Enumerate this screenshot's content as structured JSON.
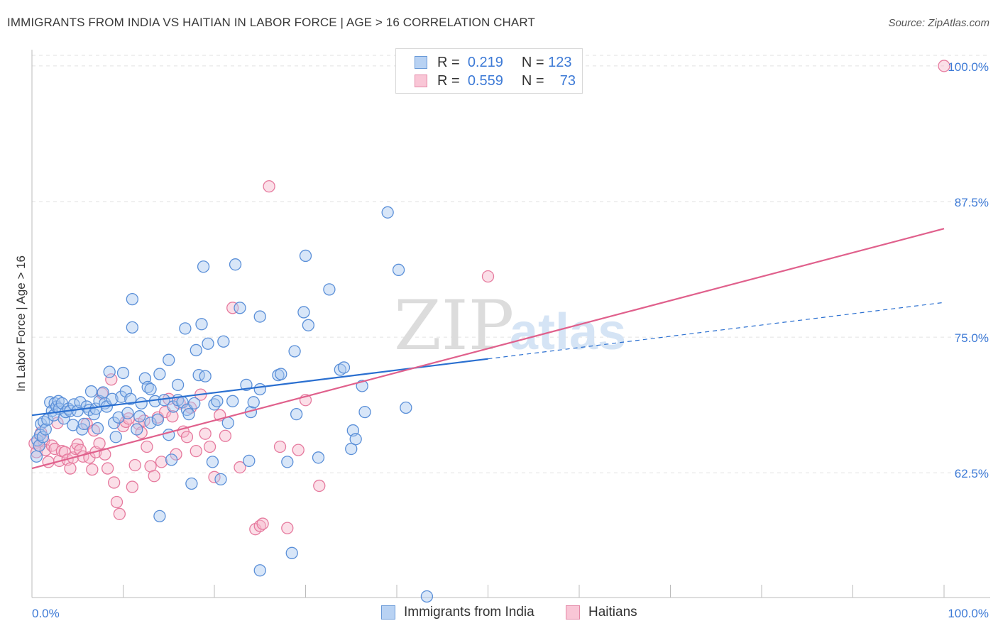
{
  "title": "IMMIGRANTS FROM INDIA VS HAITIAN IN LABOR FORCE | AGE > 16 CORRELATION CHART",
  "source": "Source: ZipAtlas.com",
  "watermark": {
    "zip": "ZIP",
    "atlas": "atlas"
  },
  "colors": {
    "blue_fill": "#a8c8f0",
    "blue_stroke": "#5a8fd8",
    "blue_line": "#2a6fd0",
    "pink_fill": "#f6b8cc",
    "pink_stroke": "#e67a9e",
    "pink_line": "#e0608c",
    "axis_label": "#3d7ad6",
    "grid": "#e2e2e2"
  },
  "legend_top": {
    "rows": [
      {
        "r_label": "R =",
        "r_value": "0.219",
        "n_label": "N =",
        "n_value": "123"
      },
      {
        "r_label": "R =",
        "r_value": "0.559",
        "n_label": "N =",
        "n_value": "73"
      }
    ]
  },
  "bottom_legend": [
    "Immigrants from India",
    "Haitians"
  ],
  "chart_data": {
    "type": "scatter",
    "xlabel": "",
    "ylabel": "In Labor Force | Age > 16",
    "xlim": [
      0,
      100
    ],
    "ylim": [
      51,
      101.5
    ],
    "x_tick_labels": [
      "0.0%",
      "100.0%"
    ],
    "y_ticks": [
      62.5,
      75.0,
      87.5,
      100.0
    ],
    "y_tick_labels": [
      "62.5%",
      "75.0%",
      "87.5%",
      "100.0%"
    ],
    "grid": true,
    "legend": "top-center",
    "series": [
      {
        "name": "Immigrants from India",
        "r": 0.219,
        "n": 123,
        "trend": {
          "x0": 0,
          "y0": 67.8,
          "x1": 50,
          "y1": 73.0,
          "dash_x1": 100,
          "dash_y1": 78.2
        },
        "points": [
          [
            0.5,
            64
          ],
          [
            0.6,
            65.5
          ],
          [
            0.8,
            65
          ],
          [
            0.9,
            66
          ],
          [
            1,
            67
          ],
          [
            1.2,
            65.8
          ],
          [
            1.3,
            67.2
          ],
          [
            1.5,
            66.5
          ],
          [
            1.7,
            67.4
          ],
          [
            2,
            69
          ],
          [
            2.2,
            68.2
          ],
          [
            2.4,
            67.8
          ],
          [
            2.5,
            68.9
          ],
          [
            2.7,
            68.6
          ],
          [
            2.9,
            69.1
          ],
          [
            3,
            68.4
          ],
          [
            3.3,
            68.9
          ],
          [
            3.5,
            67.5
          ],
          [
            3.7,
            68.1
          ],
          [
            4,
            68.4
          ],
          [
            4.2,
            68.2
          ],
          [
            4.5,
            66.9
          ],
          [
            4.6,
            68.8
          ],
          [
            5,
            68.2
          ],
          [
            5.3,
            69
          ],
          [
            5.5,
            66.5
          ],
          [
            5.7,
            67
          ],
          [
            6,
            68.6
          ],
          [
            6.3,
            68.3
          ],
          [
            6.5,
            70
          ],
          [
            6.8,
            67.9
          ],
          [
            7,
            68.4
          ],
          [
            7.2,
            66.6
          ],
          [
            7.4,
            69.1
          ],
          [
            7.8,
            69.9
          ],
          [
            8,
            68.9
          ],
          [
            8.2,
            68.6
          ],
          [
            8.5,
            71.8
          ],
          [
            8.8,
            69.3
          ],
          [
            9,
            67.1
          ],
          [
            9.2,
            65.8
          ],
          [
            9.5,
            67.6
          ],
          [
            9.8,
            69.5
          ],
          [
            10,
            71.7
          ],
          [
            10.3,
            70
          ],
          [
            10.5,
            68
          ],
          [
            10.8,
            69.3
          ],
          [
            11,
            78.5
          ],
          [
            11,
            75.9
          ],
          [
            11.5,
            66.5
          ],
          [
            11.8,
            67.7
          ],
          [
            12,
            68.9
          ],
          [
            12.4,
            71.2
          ],
          [
            12.7,
            70.4
          ],
          [
            13,
            70.2
          ],
          [
            13,
            67.1
          ],
          [
            13.5,
            69.1
          ],
          [
            13.8,
            67.4
          ],
          [
            14,
            71.6
          ],
          [
            14,
            58.5
          ],
          [
            14.5,
            69.2
          ],
          [
            15,
            66
          ],
          [
            15,
            72.9
          ],
          [
            15.3,
            63.7
          ],
          [
            15.5,
            68.6
          ],
          [
            16,
            69.2
          ],
          [
            16,
            70.6
          ],
          [
            16.5,
            69
          ],
          [
            16.8,
            75.8
          ],
          [
            17,
            68.3
          ],
          [
            17.2,
            67.9
          ],
          [
            17.5,
            61.5
          ],
          [
            17.8,
            68.9
          ],
          [
            18,
            73.8
          ],
          [
            18.3,
            71.5
          ],
          [
            18.6,
            76.2
          ],
          [
            18.8,
            81.5
          ],
          [
            19,
            71.4
          ],
          [
            19.3,
            74.4
          ],
          [
            19.8,
            63.5
          ],
          [
            20,
            68.8
          ],
          [
            20.3,
            69.1
          ],
          [
            20.7,
            61.9
          ],
          [
            21,
            74.6
          ],
          [
            21.5,
            67.1
          ],
          [
            22,
            69.1
          ],
          [
            22.3,
            81.7
          ],
          [
            22.8,
            77.7
          ],
          [
            23.5,
            70.6
          ],
          [
            23.8,
            63.6
          ],
          [
            24,
            68.1
          ],
          [
            24.3,
            69
          ],
          [
            25,
            70.2
          ],
          [
            25,
            76.9
          ],
          [
            25,
            53.5
          ],
          [
            27,
            71.5
          ],
          [
            27.3,
            71.6
          ],
          [
            28,
            63.5
          ],
          [
            28.5,
            55.1
          ],
          [
            28.8,
            73.7
          ],
          [
            29,
            67.9
          ],
          [
            29.8,
            77.3
          ],
          [
            30,
            82.5
          ],
          [
            30.3,
            76.1
          ],
          [
            31.4,
            63.9
          ],
          [
            32.6,
            79.4
          ],
          [
            33.8,
            72
          ],
          [
            34.2,
            72.2
          ],
          [
            35,
            64.7
          ],
          [
            35.2,
            66.4
          ],
          [
            35.5,
            65.6
          ],
          [
            36.2,
            70.5
          ],
          [
            36.5,
            68.1
          ],
          [
            39,
            86.5
          ],
          [
            40.2,
            81.2
          ],
          [
            43.3,
            51.1
          ],
          [
            41,
            68.5
          ]
        ]
      },
      {
        "name": "Haitians",
        "r": 0.559,
        "n": 73,
        "trend": {
          "x0": 0,
          "y0": 62.9,
          "x1": 100,
          "y1": 85.0
        },
        "points": [
          [
            0.3,
            65.2
          ],
          [
            0.5,
            64.4
          ],
          [
            0.8,
            65
          ],
          [
            1,
            66.2
          ],
          [
            1.3,
            65.4
          ],
          [
            1.5,
            64.6
          ],
          [
            1.8,
            63.5
          ],
          [
            2.2,
            65
          ],
          [
            2.5,
            64.7
          ],
          [
            2.8,
            67.1
          ],
          [
            3,
            63.6
          ],
          [
            3.3,
            64.5
          ],
          [
            3.6,
            64.4
          ],
          [
            3.9,
            63.7
          ],
          [
            4.2,
            62.9
          ],
          [
            4.5,
            63.9
          ],
          [
            4.8,
            64.7
          ],
          [
            5,
            65.1
          ],
          [
            5.3,
            64.6
          ],
          [
            5.6,
            64
          ],
          [
            6,
            67
          ],
          [
            6.3,
            63.9
          ],
          [
            6.6,
            62.8
          ],
          [
            6.8,
            66.4
          ],
          [
            7,
            64.4
          ],
          [
            7.4,
            65.2
          ],
          [
            7.7,
            69.8
          ],
          [
            8,
            64.2
          ],
          [
            8.3,
            62.9
          ],
          [
            8.7,
            71.1
          ],
          [
            9,
            61.6
          ],
          [
            9.3,
            59.8
          ],
          [
            9.6,
            58.7
          ],
          [
            10,
            66.8
          ],
          [
            10.3,
            67.2
          ],
          [
            10.6,
            67.5
          ],
          [
            11,
            61.2
          ],
          [
            11.3,
            63.2
          ],
          [
            11.7,
            67
          ],
          [
            12,
            66.2
          ],
          [
            12.3,
            67.3
          ],
          [
            12.6,
            64.9
          ],
          [
            13,
            63.1
          ],
          [
            13.4,
            62.2
          ],
          [
            13.8,
            67.6
          ],
          [
            14.2,
            63.5
          ],
          [
            14.6,
            68.1
          ],
          [
            15,
            69.3
          ],
          [
            15.4,
            67.7
          ],
          [
            15.8,
            64.2
          ],
          [
            16.2,
            68.9
          ],
          [
            16.6,
            66.3
          ],
          [
            17,
            65.8
          ],
          [
            17.4,
            68.5
          ],
          [
            18,
            64.5
          ],
          [
            18.5,
            69.7
          ],
          [
            19,
            66.1
          ],
          [
            19.5,
            64.9
          ],
          [
            20,
            62.1
          ],
          [
            20.6,
            67.8
          ],
          [
            21.2,
            65.9
          ],
          [
            22,
            77.7
          ],
          [
            22.8,
            63
          ],
          [
            24.5,
            57.3
          ],
          [
            25,
            57.6
          ],
          [
            25.3,
            57.8
          ],
          [
            26,
            88.9
          ],
          [
            27.2,
            64.9
          ],
          [
            28,
            57.4
          ],
          [
            29.2,
            64.6
          ],
          [
            30,
            69.2
          ],
          [
            31.5,
            61.3
          ],
          [
            50,
            80.6
          ],
          [
            100,
            100
          ]
        ]
      }
    ]
  }
}
